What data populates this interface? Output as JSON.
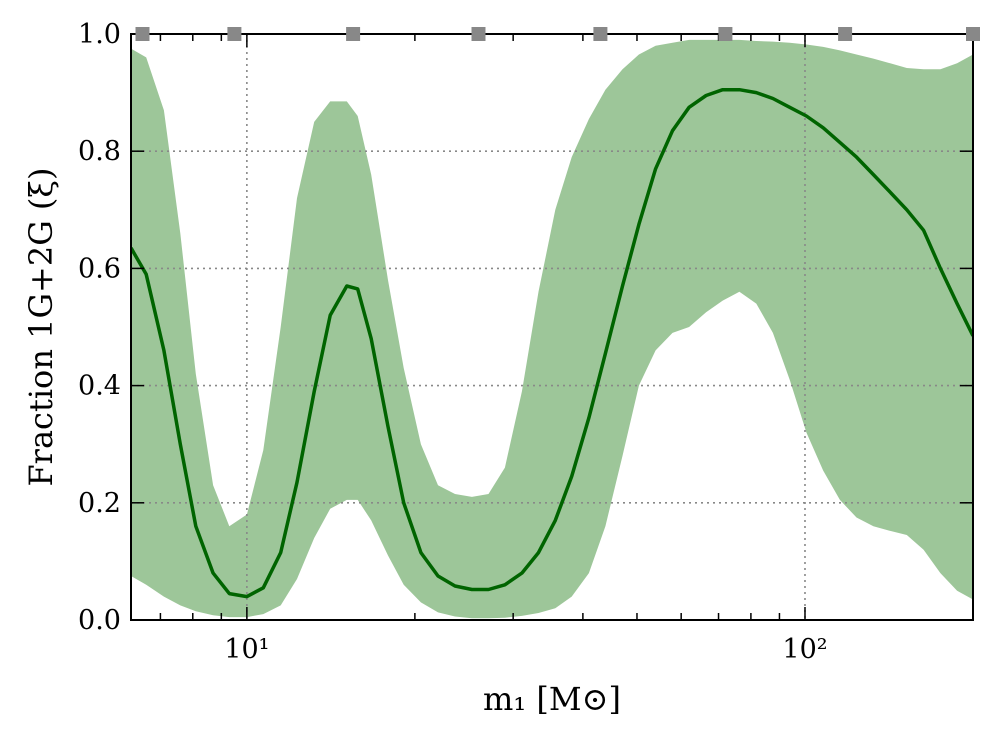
{
  "chart_data": {
    "type": "line",
    "xscale": "log",
    "xlim": [
      6.2,
      200
    ],
    "ylim": [
      0.0,
      1.0
    ],
    "grid": true,
    "xlabel": "m₁ [M⊙]",
    "ylabel": "Fraction 1G+2G (ξ)",
    "xticks": [
      {
        "value": 10,
        "label": "10¹"
      },
      {
        "value": 100,
        "label": "10²"
      }
    ],
    "yticks": [
      {
        "value": 0.0,
        "label": "0.0"
      },
      {
        "value": 0.2,
        "label": "0.2"
      },
      {
        "value": 0.4,
        "label": "0.4"
      },
      {
        "value": 0.6,
        "label": "0.6"
      },
      {
        "value": 0.8,
        "label": "0.8"
      },
      {
        "value": 1.0,
        "label": "1.0"
      }
    ],
    "knots": {
      "x": [
        6.5,
        9.5,
        15.5,
        26,
        43,
        72,
        118,
        200
      ],
      "y": [
        1.0,
        1.0,
        1.0,
        1.0,
        1.0,
        1.0,
        1.0,
        1.0
      ]
    },
    "median": {
      "x": [
        6.2,
        6.6,
        7.1,
        7.6,
        8.1,
        8.7,
        9.3,
        10.0,
        10.7,
        11.5,
        12.3,
        13.2,
        14.1,
        15.1,
        15.8,
        16.7,
        17.9,
        19.1,
        20.5,
        22.0,
        23.6,
        25.3,
        27.1,
        29.0,
        31.1,
        33.3,
        35.7,
        38.2,
        41.0,
        43.9,
        47.1,
        50.4,
        54.0,
        57.9,
        62.0,
        66.5,
        71.2,
        76.3,
        81.8,
        87.6,
        93.9,
        100.6,
        107.8,
        115.5,
        123.7,
        132.6,
        142.1,
        152.2,
        163.1,
        174.8,
        187.3,
        200.0
      ],
      "y": [
        0.635,
        0.59,
        0.46,
        0.3,
        0.16,
        0.08,
        0.045,
        0.04,
        0.055,
        0.115,
        0.235,
        0.39,
        0.52,
        0.57,
        0.565,
        0.48,
        0.33,
        0.2,
        0.115,
        0.075,
        0.058,
        0.052,
        0.052,
        0.06,
        0.08,
        0.115,
        0.17,
        0.245,
        0.345,
        0.455,
        0.57,
        0.675,
        0.77,
        0.835,
        0.875,
        0.895,
        0.905,
        0.905,
        0.9,
        0.89,
        0.875,
        0.86,
        0.84,
        0.815,
        0.79,
        0.76,
        0.73,
        0.7,
        0.665,
        0.6,
        0.54,
        0.485
      ]
    },
    "band_upper": {
      "x": [
        6.2,
        6.6,
        7.1,
        7.6,
        8.1,
        8.7,
        9.3,
        10.0,
        10.7,
        11.5,
        12.3,
        13.2,
        14.1,
        15.1,
        15.8,
        16.7,
        17.9,
        19.1,
        20.5,
        22.0,
        23.6,
        25.3,
        27.1,
        29.0,
        31.1,
        33.3,
        35.7,
        38.2,
        41.0,
        43.9,
        47.1,
        50.4,
        54.0,
        57.9,
        62.0,
        66.5,
        71.2,
        76.3,
        81.8,
        87.6,
        93.9,
        100.6,
        107.8,
        115.5,
        123.7,
        132.6,
        142.1,
        152.2,
        163.1,
        174.8,
        187.3,
        200.0
      ],
      "y": [
        0.975,
        0.96,
        0.87,
        0.66,
        0.42,
        0.23,
        0.16,
        0.18,
        0.29,
        0.5,
        0.72,
        0.85,
        0.885,
        0.885,
        0.86,
        0.76,
        0.58,
        0.43,
        0.3,
        0.23,
        0.215,
        0.21,
        0.215,
        0.26,
        0.39,
        0.56,
        0.7,
        0.79,
        0.855,
        0.905,
        0.94,
        0.965,
        0.98,
        0.985,
        0.99,
        0.99,
        0.99,
        0.99,
        0.988,
        0.987,
        0.985,
        0.982,
        0.978,
        0.972,
        0.965,
        0.958,
        0.95,
        0.942,
        0.94,
        0.94,
        0.95,
        0.965
      ]
    },
    "band_lower": {
      "x": [
        6.2,
        6.6,
        7.1,
        7.6,
        8.1,
        8.7,
        9.3,
        10.0,
        10.7,
        11.5,
        12.3,
        13.2,
        14.1,
        15.1,
        15.8,
        16.7,
        17.9,
        19.1,
        20.5,
        22.0,
        23.6,
        25.3,
        27.1,
        29.0,
        31.1,
        33.3,
        35.7,
        38.2,
        41.0,
        43.9,
        47.1,
        50.4,
        54.0,
        57.9,
        62.0,
        66.5,
        71.2,
        76.3,
        81.8,
        87.6,
        93.9,
        100.6,
        107.8,
        115.5,
        123.7,
        132.6,
        142.1,
        152.2,
        163.1,
        174.8,
        187.3,
        200.0
      ],
      "y": [
        0.075,
        0.06,
        0.04,
        0.025,
        0.015,
        0.008,
        0.005,
        0.005,
        0.01,
        0.025,
        0.07,
        0.14,
        0.19,
        0.205,
        0.205,
        0.17,
        0.11,
        0.06,
        0.03,
        0.013,
        0.006,
        0.003,
        0.003,
        0.004,
        0.007,
        0.012,
        0.02,
        0.04,
        0.08,
        0.16,
        0.28,
        0.4,
        0.46,
        0.49,
        0.5,
        0.525,
        0.545,
        0.56,
        0.54,
        0.49,
        0.41,
        0.32,
        0.255,
        0.205,
        0.175,
        0.16,
        0.152,
        0.145,
        0.12,
        0.08,
        0.05,
        0.035
      ]
    },
    "colors": {
      "median": "#006400",
      "band": "#9dc699",
      "knots": "#888888",
      "grid": "#888888",
      "axes": "#000000"
    }
  }
}
